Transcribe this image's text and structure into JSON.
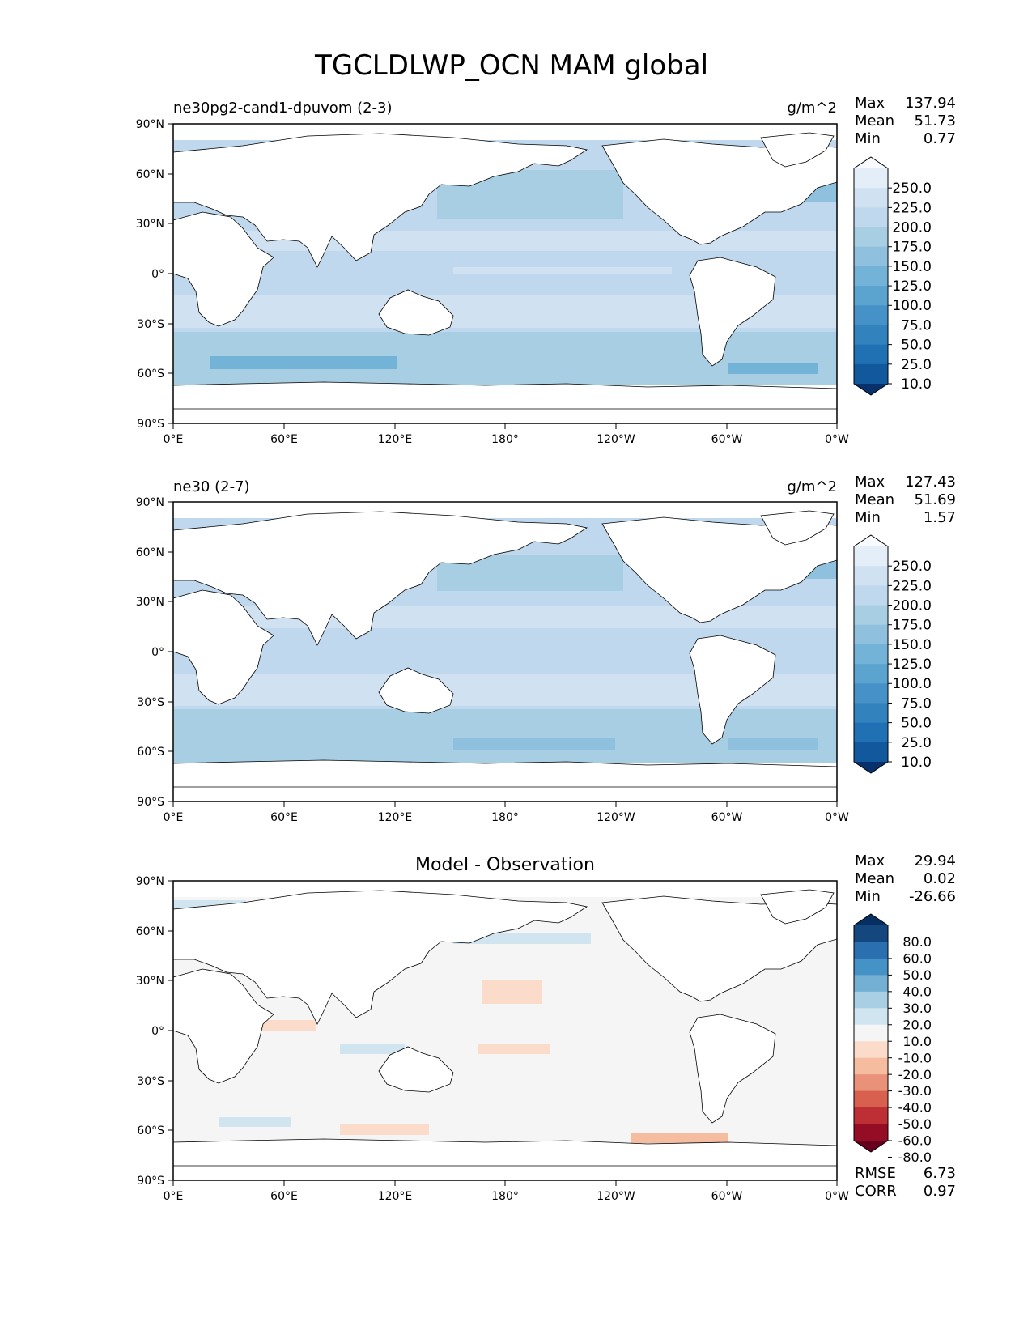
{
  "title": "TGCLDLWP_OCN MAM global",
  "panels": [
    {
      "left_title": "ne30pg2-cand1-dpuvom (2-3)",
      "units": "g/m^2",
      "stats": [
        {
          "label": "Max",
          "value": "137.94"
        },
        {
          "label": "Mean",
          "value": "51.73"
        },
        {
          "label": "Min",
          "value": "0.77"
        }
      ],
      "colorbar_type": "seq",
      "colorbar_levels": [
        "250.0",
        "225.0",
        "200.0",
        "175.0",
        "150.0",
        "125.0",
        "100.0",
        "75.0",
        "50.0",
        "25.0",
        "10.0"
      ]
    },
    {
      "left_title": "ne30 (2-7)",
      "units": "g/m^2",
      "stats": [
        {
          "label": "Max",
          "value": "127.43"
        },
        {
          "label": "Mean",
          "value": "51.69"
        },
        {
          "label": "Min",
          "value": "1.57"
        }
      ],
      "colorbar_type": "seq",
      "colorbar_levels": [
        "250.0",
        "225.0",
        "200.0",
        "175.0",
        "150.0",
        "125.0",
        "100.0",
        "75.0",
        "50.0",
        "25.0",
        "10.0"
      ]
    },
    {
      "center_title": "Model - Observation",
      "stats": [
        {
          "label": "Max",
          "value": "29.94"
        },
        {
          "label": "Mean",
          "value": "0.02"
        },
        {
          "label": "Min",
          "value": "-26.66"
        }
      ],
      "colorbar_type": "div",
      "colorbar_levels": [
        "80.0",
        "60.0",
        "50.0",
        "40.0",
        "30.0",
        "20.0",
        "10.0",
        "-10.0",
        "-20.0",
        "-30.0",
        "-40.0",
        "-50.0",
        "-60.0",
        "-80.0"
      ],
      "extra_stats": [
        {
          "label": "RMSE",
          "value": "6.73"
        },
        {
          "label": "CORR",
          "value": "0.97"
        }
      ]
    }
  ],
  "lat_ticks": [
    "90°N",
    "60°N",
    "30°N",
    "0°",
    "30°S",
    "60°S",
    "90°S"
  ],
  "lon_ticks": [
    "0°E",
    "60°E",
    "120°E",
    "180°",
    "120°W",
    "60°W",
    "0°W"
  ],
  "colors": {
    "seq": [
      "#f7fbff",
      "#e3eef9",
      "#d0e1f2",
      "#bfd8ed",
      "#a8cee4",
      "#8fc1de",
      "#74b3d8",
      "#5ca4d0",
      "#4692c8",
      "#3282be",
      "#2070b4",
      "#11589d",
      "#08306b"
    ],
    "div": [
      "#053061",
      "#14477e",
      "#2a70b1",
      "#4492c6",
      "#74b0d4",
      "#a8cfe3",
      "#d1e5f0",
      "#f5f5f5",
      "#fbdccb",
      "#f6bc9f",
      "#ea917a",
      "#d8604f",
      "#bd2e35",
      "#950d24",
      "#67001f"
    ]
  }
}
